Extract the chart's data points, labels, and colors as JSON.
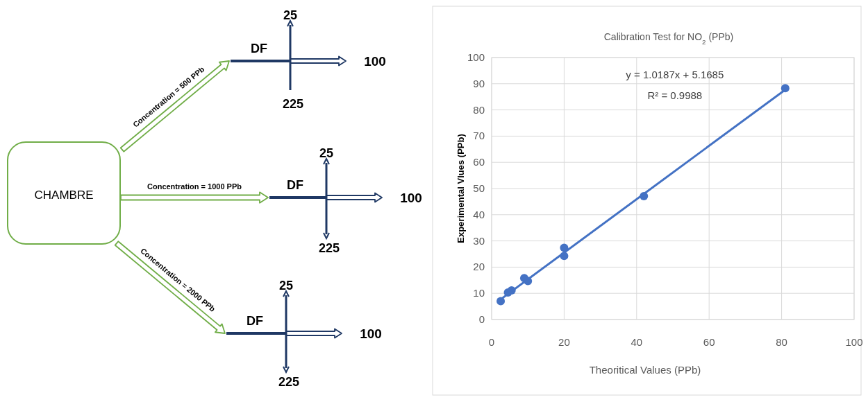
{
  "chart_data": [
    {
      "type": "other",
      "annotations": [
        "CHAMBRE",
        "Concentration = 500 PPb",
        "Concentration = 1000 PPb",
        "Concentration = 2000 PPb",
        "DF",
        "25",
        "100",
        "225",
        "DF",
        "25",
        "100",
        "225",
        "DF",
        "25",
        "100",
        "225"
      ]
    },
    {
      "type": "scatter",
      "title": "Calibration Test for NO$_{2}$  (PPb)",
      "xlabel": "Theoritical Values (PPb)",
      "ylabel": "Experimental Vlues (PPb)",
      "series": [
        {
          "type": "scatter",
          "marker": "circle",
          "color": "#4472c4",
          "x": [
            2.5,
            4.5,
            5.5,
            9,
            10,
            20,
            20,
            42,
            81
          ],
          "values": [
            7,
            10.3,
            11.1,
            15.8,
            14.7,
            27.4,
            24.3,
            47.1,
            88.3
          ]
        },
        {
          "type": "line",
          "marker": "none",
          "color": "#4472c4",
          "x": [
            2.5,
            81
          ],
          "values": [
            7.7,
            87.7
          ]
        }
      ],
      "annotations": [
        "y = 1.0187x + 5.1685",
        "R² = 0.9988"
      ],
      "xlim": [
        0,
        100
      ],
      "xticks": [
        0,
        20,
        40,
        60,
        80,
        100
      ],
      "ylim": [
        0,
        100
      ],
      "yticks": [
        0,
        10,
        20,
        30,
        40,
        50,
        60,
        70,
        80,
        90,
        100
      ],
      "grid": true
    }
  ]
}
